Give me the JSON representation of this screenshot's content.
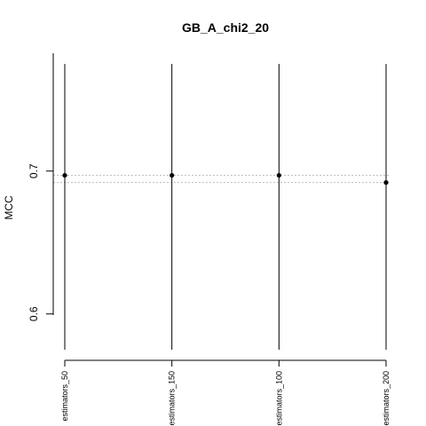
{
  "chart_data": {
    "type": "scatter",
    "title": "GB_A_chi2_20",
    "xlabel": "",
    "ylabel": "MCC",
    "categories": [
      "estimators_50",
      "estimators_150",
      "estimators_100",
      "estimators_200"
    ],
    "values": [
      0.697,
      0.697,
      0.697,
      0.692
    ],
    "ylim": [
      0.575,
      0.775
    ],
    "yticks": [
      0.6,
      0.7
    ],
    "ytick_labels": [
      "0.6",
      "0.7"
    ],
    "point_color": "#000000",
    "reference_line_color": "#bbbbbb",
    "grid": false
  }
}
